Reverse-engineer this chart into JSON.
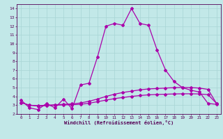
{
  "xlabel": "Windchill (Refroidissement éolien,°C)",
  "bg_color": "#c2e8e8",
  "grid_color": "#a8d4d4",
  "line_color": "#aa00aa",
  "xlim": [
    -0.5,
    23.5
  ],
  "ylim": [
    2,
    14.5
  ],
  "xticks": [
    0,
    1,
    2,
    3,
    4,
    5,
    6,
    7,
    8,
    9,
    10,
    11,
    12,
    13,
    14,
    15,
    16,
    17,
    18,
    19,
    20,
    21,
    22,
    23
  ],
  "yticks": [
    2,
    3,
    4,
    5,
    6,
    7,
    8,
    9,
    10,
    11,
    12,
    13,
    14
  ],
  "line1_x": [
    0,
    1,
    2,
    3,
    4,
    5,
    6,
    7,
    8,
    9,
    10,
    11,
    12,
    13,
    14,
    15,
    16,
    17,
    18,
    19,
    20,
    21,
    22,
    23
  ],
  "line1_y": [
    3.6,
    2.7,
    2.5,
    3.2,
    2.7,
    3.7,
    2.6,
    5.3,
    5.5,
    8.5,
    12.0,
    12.3,
    12.1,
    14.0,
    12.3,
    12.1,
    9.3,
    7.0,
    5.7,
    5.0,
    4.7,
    4.5,
    3.2,
    3.1
  ],
  "line2_x": [
    0,
    1,
    2,
    3,
    4,
    5,
    6,
    7,
    8,
    9,
    10,
    11,
    12,
    13,
    14,
    15,
    16,
    17,
    18,
    19,
    20,
    21,
    22,
    23
  ],
  "line2_y": [
    3.3,
    3.0,
    2.95,
    3.0,
    3.05,
    3.1,
    3.15,
    3.25,
    3.45,
    3.7,
    4.0,
    4.25,
    4.45,
    4.6,
    4.75,
    4.85,
    4.9,
    4.95,
    5.0,
    5.02,
    5.0,
    4.95,
    4.8,
    3.2
  ],
  "line3_x": [
    0,
    1,
    2,
    3,
    4,
    5,
    6,
    7,
    8,
    9,
    10,
    11,
    12,
    13,
    14,
    15,
    16,
    17,
    18,
    19,
    20,
    21,
    22,
    23
  ],
  "line3_y": [
    3.3,
    3.0,
    2.9,
    2.95,
    3.0,
    3.03,
    3.06,
    3.1,
    3.22,
    3.4,
    3.58,
    3.75,
    3.88,
    4.0,
    4.1,
    4.18,
    4.22,
    4.25,
    4.28,
    4.3,
    4.3,
    4.28,
    4.2,
    3.2
  ]
}
